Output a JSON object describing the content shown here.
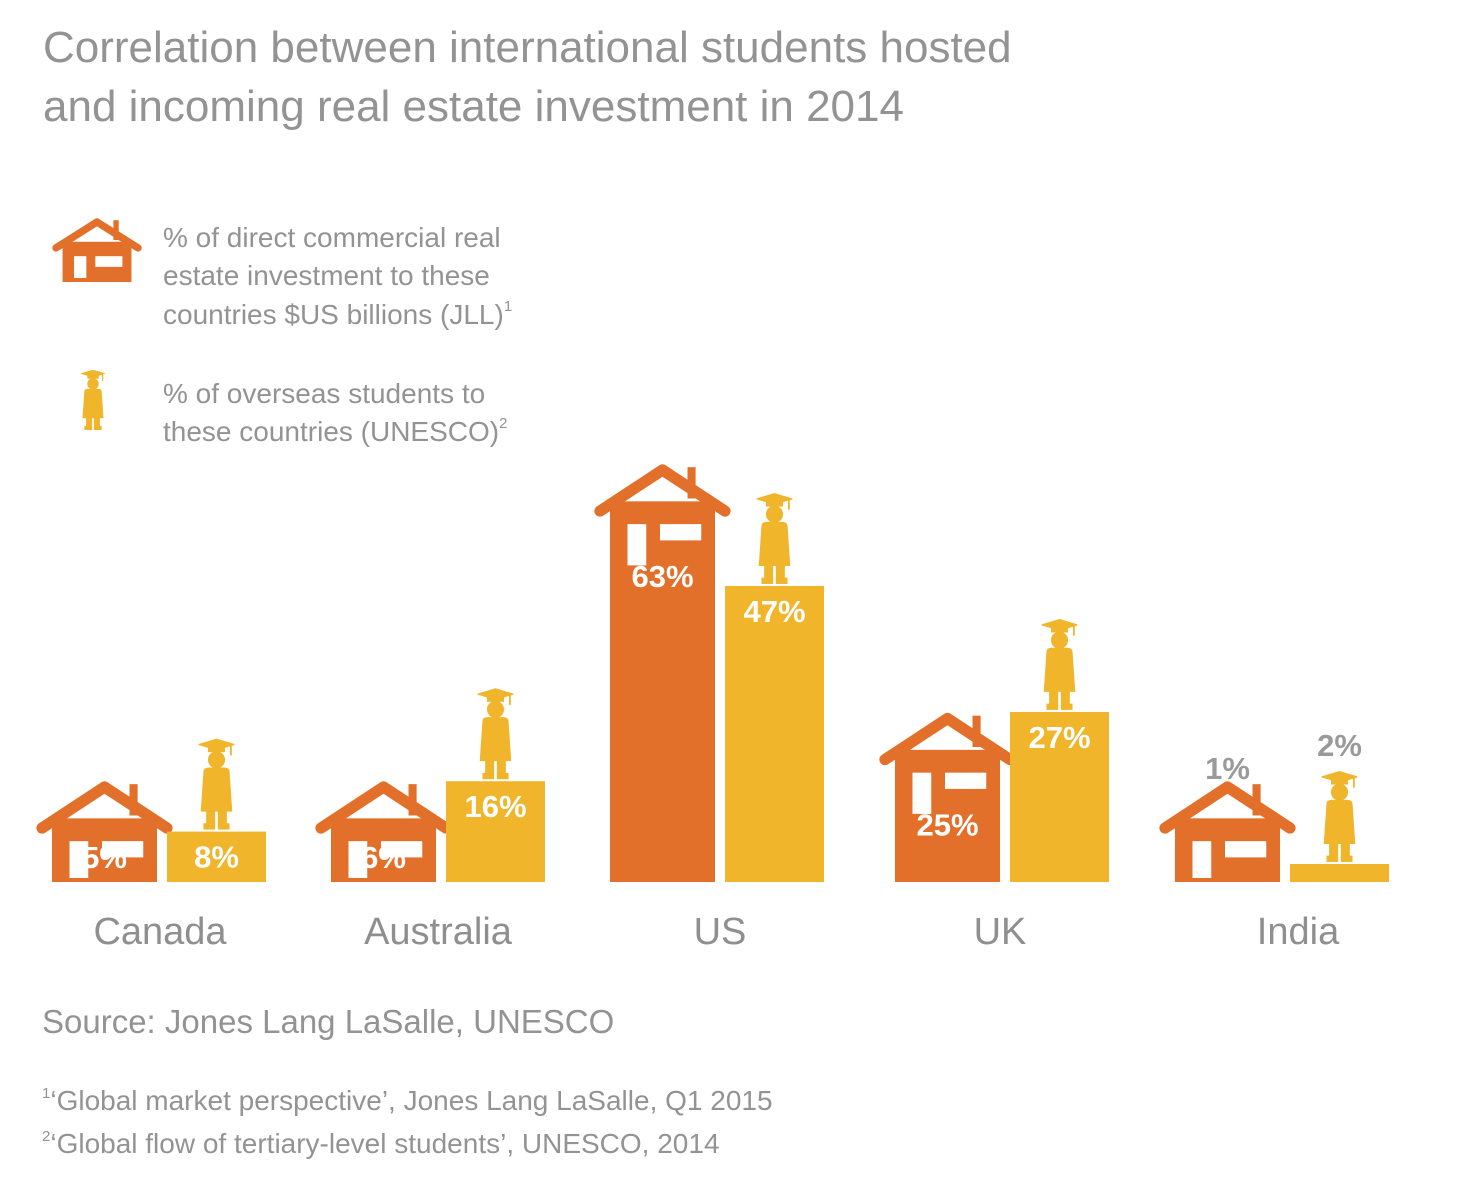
{
  "colors": {
    "orange": "#e3702a",
    "gold": "#f0b52a",
    "text": "#939393",
    "white_label": "#ffffff",
    "grey_label": "#9a9a9a"
  },
  "chart_data": {
    "type": "bar",
    "title": [
      "Correlation between international students hosted",
      "and incoming real estate investment in 2014"
    ],
    "categories": [
      "Canada",
      "Australia",
      "US",
      "UK",
      "India"
    ],
    "series": [
      {
        "name": "% of direct commercial real estate investment to these countries $US billions (JLL)",
        "icon": "house-icon",
        "color": "#e3702a",
        "values": [
          5,
          6,
          63,
          25,
          1
        ],
        "labels": [
          "5%",
          "6%",
          "63%",
          "25%",
          "1%"
        ]
      },
      {
        "name": "% of overseas students to these countries (UNESCO)",
        "icon": "graduate-icon",
        "color": "#f0b52a",
        "values": [
          8,
          16,
          47,
          27,
          2
        ],
        "labels": [
          "8%",
          "16%",
          "47%",
          "27%",
          "2%"
        ]
      }
    ],
    "ylim": [
      0,
      63
    ],
    "legend": {
      "position": "top-left",
      "items": [
        {
          "lines": [
            "% of direct commercial real",
            "estate investment to these",
            "countries $US billions (JLL)"
          ],
          "sup": "1"
        },
        {
          "lines": [
            "% of overseas students to",
            "these countries (UNESCO)"
          ],
          "sup": "2"
        }
      ]
    },
    "xlabel": "",
    "ylabel": ""
  },
  "source": "Source: Jones Lang LaSalle, UNESCO",
  "footnotes": [
    {
      "num": "1",
      "text": "‘Global market perspective’, Jones Lang LaSalle, Q1 2015"
    },
    {
      "num": "2",
      "text": "‘Global flow of tertiary-level students’, UNESCO, 2014"
    }
  ]
}
